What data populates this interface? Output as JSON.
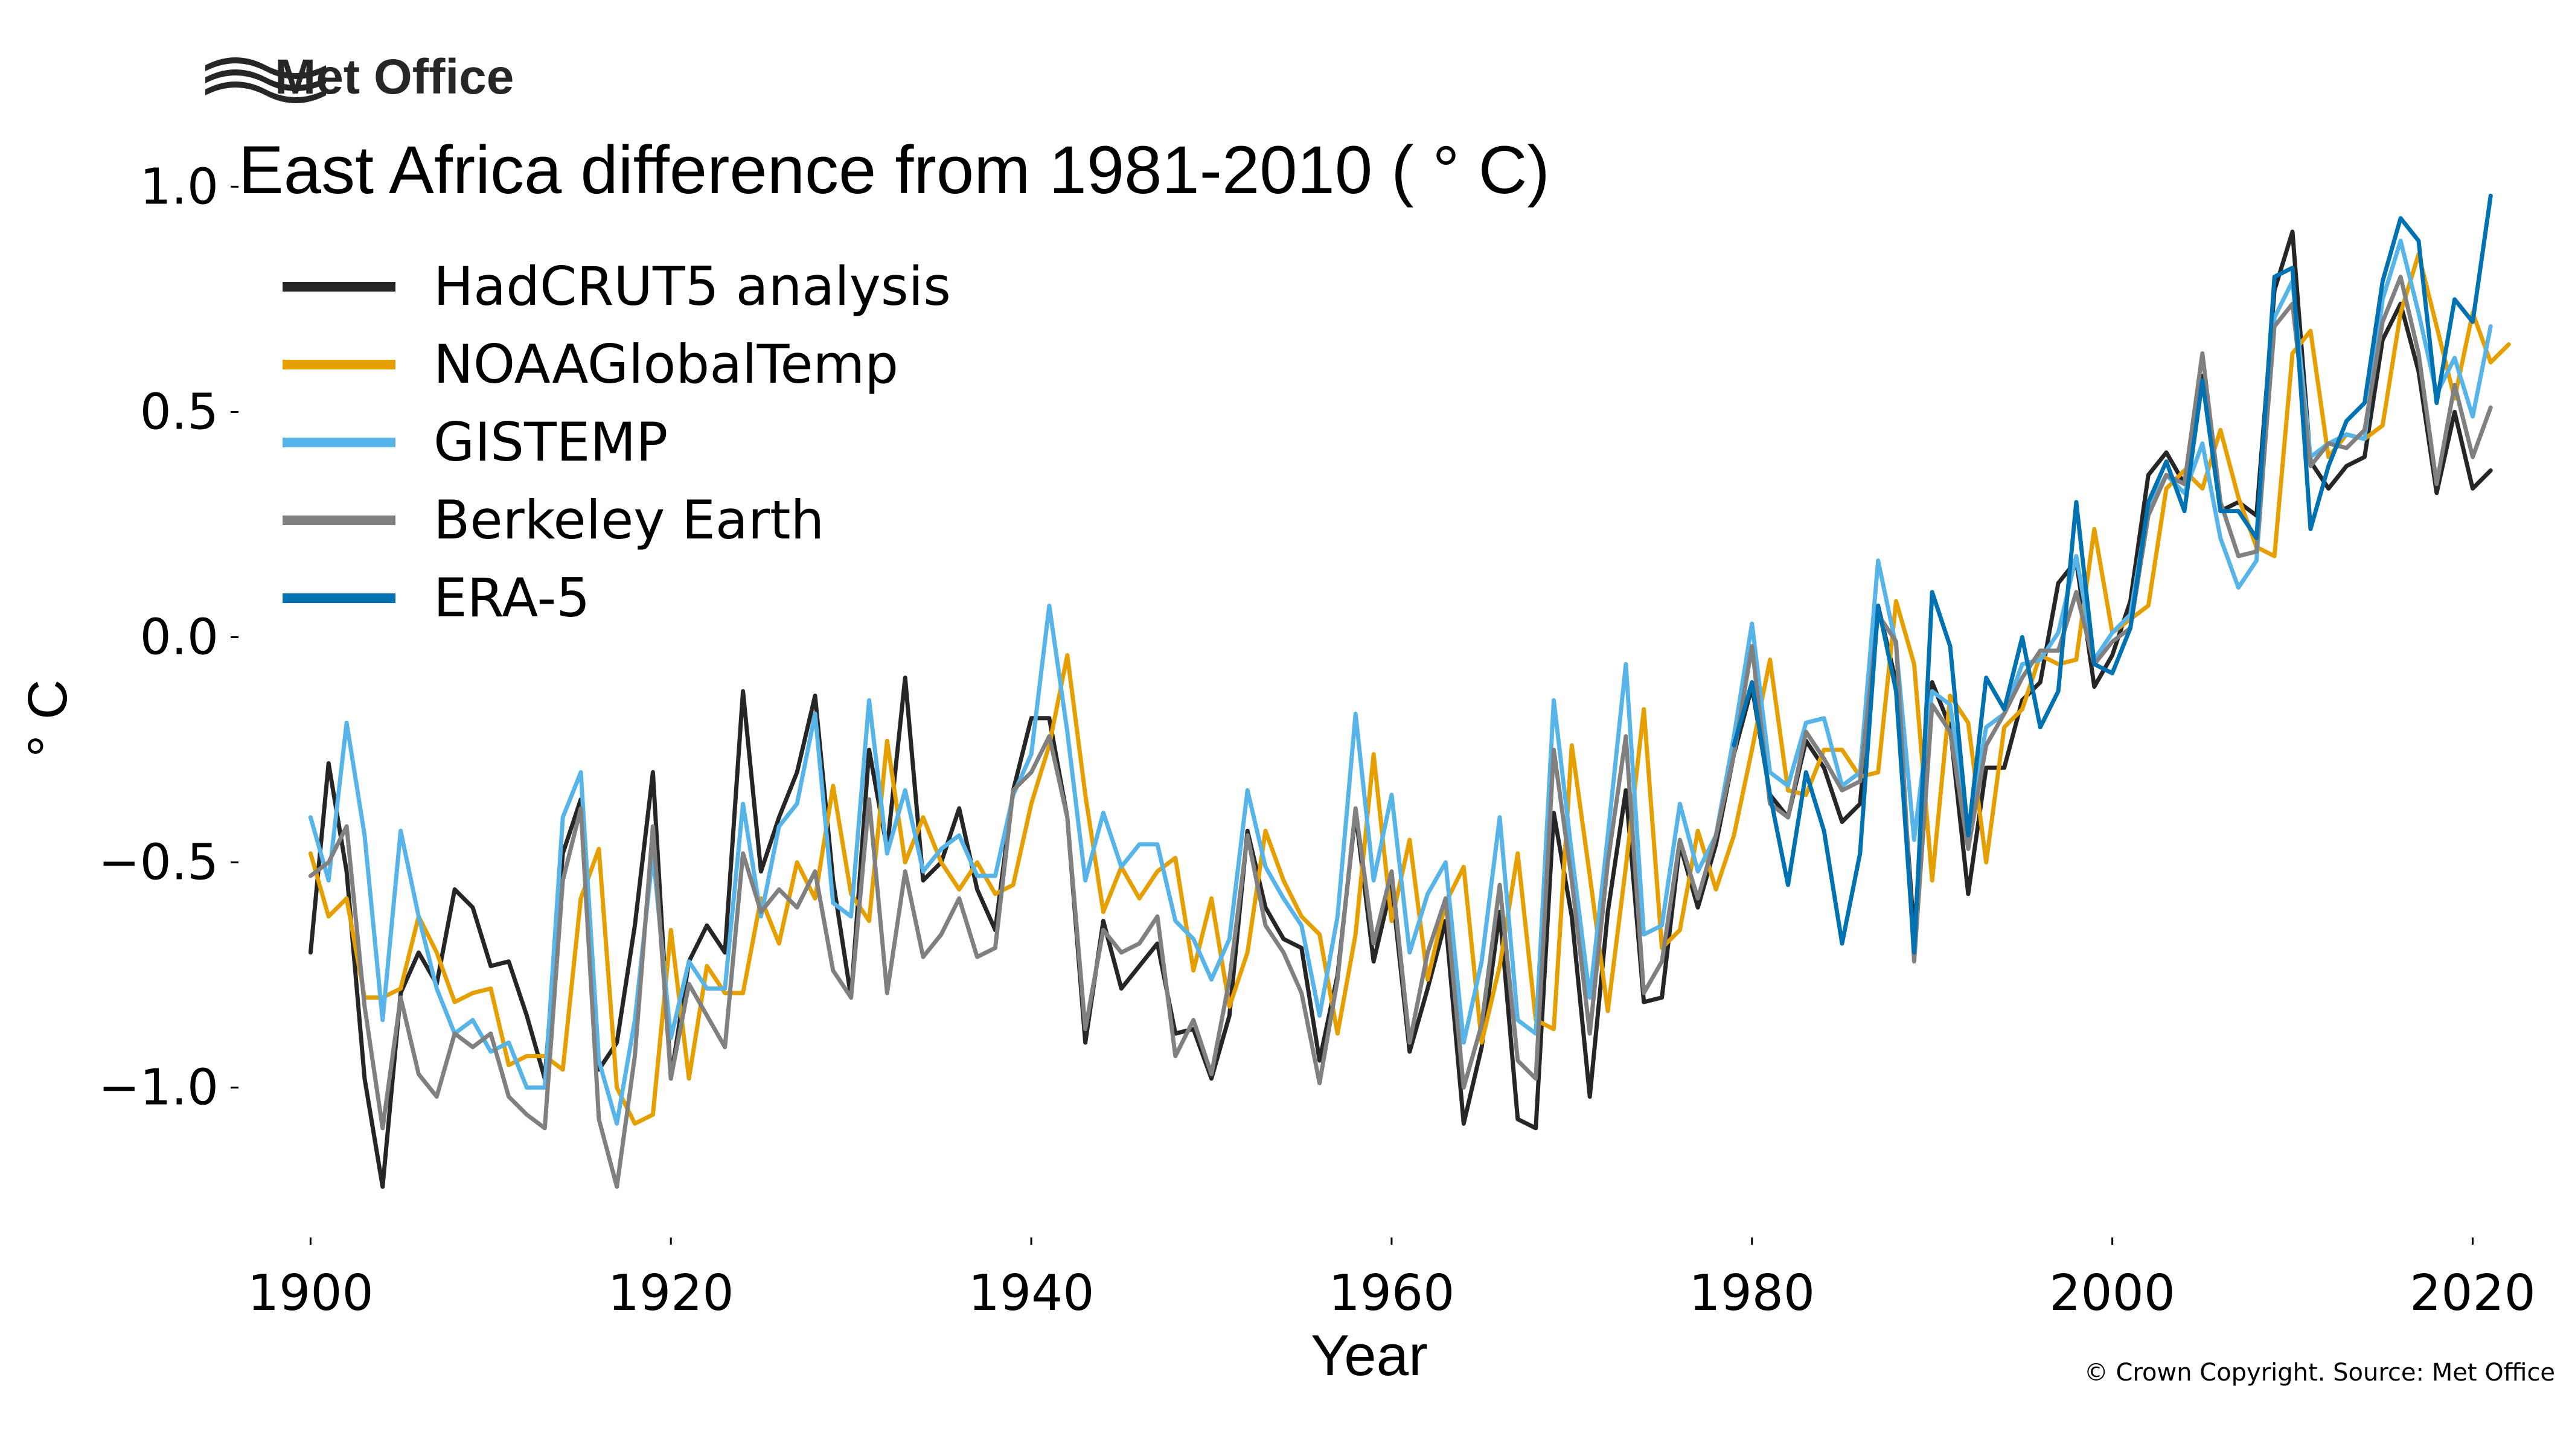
{
  "logo": {
    "text": "Met Office",
    "icon": "met-office-waves-icon"
  },
  "copyright": "© Crown Copyright. Source: Met Office",
  "chart_data": {
    "type": "line",
    "title": "East Africa difference from 1981-2010 ( ° C)",
    "xlabel": "Year",
    "ylabel": "° C",
    "xlim": [
      1896,
      2023
    ],
    "ylim": [
      -1.33,
      1.05
    ],
    "xticks": [
      1900,
      1920,
      1940,
      1960,
      1980,
      2000,
      2020
    ],
    "xtick_labels": [
      "1900",
      "1920",
      "1940",
      "1960",
      "1980",
      "2000",
      "2020"
    ],
    "yticks": [
      1.0,
      0.5,
      0.0,
      -0.5,
      -1.0
    ],
    "ytick_labels": [
      "1.0",
      "0.5",
      "0.0",
      "−0.5",
      "−1.0"
    ],
    "grid": false,
    "legend_position": "top-left",
    "x_start": 1900,
    "series": [
      {
        "name": "HadCRUT5 analysis",
        "color": "#262626",
        "values": [
          -0.7,
          -0.28,
          -0.52,
          -0.98,
          -1.22,
          -0.79,
          -0.7,
          -0.77,
          -0.56,
          -0.6,
          -0.73,
          -0.72,
          -0.84,
          -0.98,
          -0.48,
          -0.36,
          -0.96,
          -0.9,
          -0.64,
          -0.3,
          -0.98,
          -0.72,
          -0.64,
          -0.7,
          -0.12,
          -0.52,
          -0.4,
          -0.3,
          -0.13,
          -0.54,
          -0.8,
          -0.25,
          -0.47,
          -0.09,
          -0.54,
          -0.5,
          -0.38,
          -0.56,
          -0.65,
          -0.34,
          -0.18,
          -0.18,
          -0.4,
          -0.9,
          -0.63,
          -0.78,
          -0.73,
          -0.68,
          -0.88,
          -0.87,
          -0.98,
          -0.84,
          -0.43,
          -0.6,
          -0.67,
          -0.69,
          -0.94,
          -0.75,
          -0.39,
          -0.72,
          -0.55,
          -0.92,
          -0.78,
          -0.63,
          -1.08,
          -0.91,
          -0.61,
          -1.07,
          -1.09,
          -0.39,
          -0.62,
          -1.02,
          -0.61,
          -0.34,
          -0.81,
          -0.8,
          -0.46,
          -0.6,
          -0.46,
          -0.26,
          -0.11,
          -0.35,
          -0.4,
          -0.23,
          -0.29,
          -0.41,
          -0.37,
          0.07,
          -0.1,
          -0.66,
          -0.1,
          -0.2,
          -0.57,
          -0.29,
          -0.29,
          -0.14,
          -0.1,
          0.12,
          0.17,
          -0.11,
          -0.04,
          0.08,
          0.36,
          0.41,
          0.34,
          0.58,
          0.28,
          0.3,
          0.27,
          0.77,
          0.9,
          0.39,
          0.33,
          0.38,
          0.4,
          0.66,
          0.74,
          0.59,
          0.32,
          0.5,
          0.33,
          0.37
        ]
      },
      {
        "name": "NOAAGlobalTemp",
        "color": "#e69f00",
        "values": [
          -0.48,
          -0.62,
          -0.58,
          -0.8,
          -0.8,
          -0.78,
          -0.62,
          -0.7,
          -0.81,
          -0.79,
          -0.78,
          -0.95,
          -0.93,
          -0.93,
          -0.96,
          -0.58,
          -0.47,
          -1.0,
          -1.08,
          -1.06,
          -0.65,
          -0.98,
          -0.73,
          -0.79,
          -0.79,
          -0.58,
          -0.68,
          -0.5,
          -0.58,
          -0.33,
          -0.57,
          -0.63,
          -0.23,
          -0.5,
          -0.4,
          -0.5,
          -0.56,
          -0.5,
          -0.57,
          -0.55,
          -0.37,
          -0.24,
          -0.04,
          -0.35,
          -0.61,
          -0.51,
          -0.58,
          -0.52,
          -0.49,
          -0.74,
          -0.58,
          -0.82,
          -0.7,
          -0.43,
          -0.54,
          -0.62,
          -0.66,
          -0.88,
          -0.66,
          -0.26,
          -0.63,
          -0.45,
          -0.76,
          -0.59,
          -0.51,
          -0.9,
          -0.73,
          -0.48,
          -0.85,
          -0.87,
          -0.24,
          -0.53,
          -0.83,
          -0.51,
          -0.16,
          -0.69,
          -0.65,
          -0.43,
          -0.56,
          -0.44,
          -0.25,
          -0.05,
          -0.34,
          -0.35,
          -0.25,
          -0.25,
          -0.31,
          -0.3,
          0.08,
          -0.06,
          -0.54,
          -0.13,
          -0.19,
          -0.5,
          -0.2,
          -0.16,
          -0.04,
          -0.06,
          -0.05,
          0.24,
          0.01,
          0.04,
          0.07,
          0.33,
          0.37,
          0.33,
          0.46,
          0.31,
          0.2,
          0.18,
          0.63,
          0.68,
          0.4,
          0.45,
          0.44,
          0.47,
          0.72,
          0.85,
          0.69,
          0.53,
          0.72,
          0.61,
          0.65
        ]
      },
      {
        "name": "GISTEMP",
        "color": "#56b4e9",
        "values": [
          -0.4,
          -0.54,
          -0.19,
          -0.44,
          -0.85,
          -0.43,
          -0.62,
          -0.78,
          -0.88,
          -0.85,
          -0.92,
          -0.9,
          -1.0,
          -1.0,
          -0.4,
          -0.3,
          -0.94,
          -1.08,
          -0.85,
          -0.48,
          -0.89,
          -0.72,
          -0.78,
          -0.78,
          -0.37,
          -0.62,
          -0.42,
          -0.37,
          -0.17,
          -0.59,
          -0.62,
          -0.14,
          -0.48,
          -0.34,
          -0.52,
          -0.47,
          -0.44,
          -0.53,
          -0.53,
          -0.35,
          -0.26,
          0.07,
          -0.21,
          -0.54,
          -0.39,
          -0.51,
          -0.46,
          -0.46,
          -0.63,
          -0.67,
          -0.76,
          -0.67,
          -0.34,
          -0.51,
          -0.58,
          -0.64,
          -0.84,
          -0.62,
          -0.17,
          -0.54,
          -0.35,
          -0.7,
          -0.57,
          -0.5,
          -0.9,
          -0.72,
          -0.4,
          -0.85,
          -0.88,
          -0.14,
          -0.48,
          -0.8,
          -0.44,
          -0.06,
          -0.66,
          -0.64,
          -0.37,
          -0.52,
          -0.44,
          -0.22,
          0.03,
          -0.3,
          -0.33,
          -0.19,
          -0.18,
          -0.33,
          -0.3,
          0.17,
          -0.02,
          -0.45,
          -0.12,
          -0.15,
          -0.43,
          -0.2,
          -0.17,
          -0.06,
          -0.05,
          0.01,
          0.18,
          -0.05,
          0.01,
          0.05,
          0.29,
          0.36,
          0.32,
          0.43,
          0.22,
          0.11,
          0.17,
          0.71,
          0.79,
          0.4,
          0.43,
          0.45,
          0.44,
          0.75,
          0.88,
          0.72,
          0.54,
          0.62,
          0.49,
          0.69
        ]
      },
      {
        "name": "Berkeley Earth",
        "color": "#808080",
        "values": [
          -0.53,
          -0.5,
          -0.42,
          -0.82,
          -1.09,
          -0.8,
          -0.97,
          -1.02,
          -0.88,
          -0.91,
          -0.88,
          -1.02,
          -1.06,
          -1.09,
          -0.54,
          -0.38,
          -1.07,
          -1.22,
          -0.93,
          -0.42,
          -0.98,
          -0.77,
          -0.84,
          -0.91,
          -0.48,
          -0.61,
          -0.56,
          -0.6,
          -0.52,
          -0.74,
          -0.8,
          -0.36,
          -0.79,
          -0.52,
          -0.71,
          -0.66,
          -0.58,
          -0.71,
          -0.69,
          -0.34,
          -0.3,
          -0.22,
          -0.4,
          -0.87,
          -0.65,
          -0.7,
          -0.68,
          -0.62,
          -0.93,
          -0.85,
          -0.97,
          -0.76,
          -0.44,
          -0.64,
          -0.7,
          -0.79,
          -0.99,
          -0.76,
          -0.38,
          -0.68,
          -0.52,
          -0.9,
          -0.7,
          -0.58,
          -1.0,
          -0.86,
          -0.55,
          -0.94,
          -0.98,
          -0.25,
          -0.54,
          -0.88,
          -0.5,
          -0.22,
          -0.79,
          -0.72,
          -0.45,
          -0.58,
          -0.44,
          -0.26,
          -0.02,
          -0.37,
          -0.4,
          -0.21,
          -0.27,
          -0.34,
          -0.32,
          0.05,
          -0.01,
          -0.72,
          -0.15,
          -0.21,
          -0.47,
          -0.24,
          -0.17,
          -0.09,
          -0.03,
          -0.03,
          0.1,
          -0.06,
          -0.01,
          0.02,
          0.27,
          0.36,
          0.34,
          0.63,
          0.3,
          0.18,
          0.19,
          0.69,
          0.74,
          0.38,
          0.43,
          0.42,
          0.46,
          0.7,
          0.8,
          0.63,
          0.34,
          0.56,
          0.4,
          0.51
        ]
      },
      {
        "name": "ERA-5",
        "color": "#0072b2",
        "x_start": 1979,
        "values": [
          -0.24,
          -0.1,
          -0.35,
          -0.55,
          -0.3,
          -0.43,
          -0.68,
          -0.48,
          0.07,
          -0.12,
          -0.7,
          0.1,
          -0.02,
          -0.44,
          -0.09,
          -0.16,
          0.0,
          -0.2,
          -0.12,
          0.3,
          -0.06,
          -0.08,
          0.02,
          0.3,
          0.39,
          0.28,
          0.57,
          0.28,
          0.28,
          0.22,
          0.8,
          0.82,
          0.24,
          0.38,
          0.48,
          0.52,
          0.79,
          0.93,
          0.88,
          0.52,
          0.75,
          0.7,
          0.98
        ]
      }
    ]
  }
}
